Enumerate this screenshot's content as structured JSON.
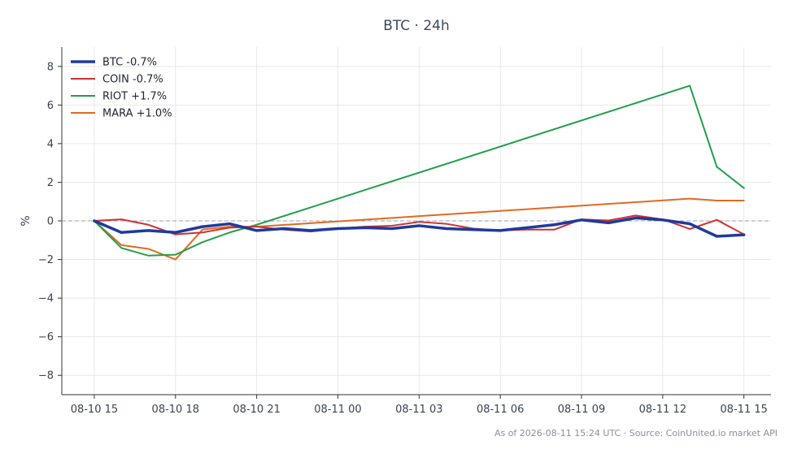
{
  "chart_data": {
    "type": "line",
    "title": "BTC · 24h",
    "xlabel": "",
    "ylabel": "%",
    "ylim": [
      -9,
      9
    ],
    "yticks": [
      -8,
      -6,
      -4,
      -2,
      0,
      2,
      4,
      6,
      8
    ],
    "ytick_labels": [
      "−8",
      "−6",
      "−4",
      "−2",
      "0",
      "2",
      "4",
      "6",
      "8"
    ],
    "xlim": [
      -1.2,
      25
    ],
    "xticks": [
      0,
      3,
      6,
      9,
      12,
      15,
      18,
      21,
      24
    ],
    "xtick_labels": [
      "08-10 15",
      "08-10 18",
      "08-10 21",
      "08-11 00",
      "08-11 03",
      "08-11 06",
      "08-11 09",
      "08-11 12",
      "08-11 15"
    ],
    "grid": true,
    "zero_line": true,
    "legend_position": "top-left",
    "x": [
      0,
      1,
      2,
      3,
      4,
      5,
      6,
      7,
      8,
      9,
      10,
      11,
      12,
      13,
      14,
      15,
      16,
      17,
      18,
      19,
      20,
      21,
      22,
      23,
      24
    ],
    "series": [
      {
        "name": "BTC -0.7%",
        "color": "#1f3a9e",
        "width": 3.5,
        "values": [
          0.0,
          -0.6,
          -0.5,
          -0.6,
          -0.3,
          -0.15,
          -0.5,
          -0.4,
          -0.5,
          -0.4,
          -0.35,
          -0.4,
          -0.25,
          -0.4,
          -0.45,
          -0.5,
          -0.35,
          -0.2,
          0.05,
          -0.1,
          0.15,
          0.05,
          -0.15,
          -0.8,
          -0.72
        ]
      },
      {
        "name": "COIN -0.7%",
        "color": "#d03030",
        "width": 2,
        "values": [
          0.0,
          0.08,
          -0.2,
          -0.7,
          -0.6,
          -0.35,
          -0.3,
          -0.45,
          -0.55,
          -0.4,
          -0.3,
          -0.25,
          -0.05,
          -0.15,
          -0.4,
          -0.5,
          -0.45,
          -0.45,
          0.08,
          0.02,
          0.28,
          0.08,
          -0.42,
          0.05,
          -0.7
        ]
      },
      {
        "name": "RIOT +1.7%",
        "color": "#21a04a",
        "width": 2,
        "values": [
          0.0,
          -1.4,
          -1.8,
          -1.75,
          -1.1,
          -0.6,
          -0.2,
          null,
          null,
          null,
          null,
          null,
          null,
          null,
          null,
          null,
          null,
          null,
          null,
          null,
          null,
          null,
          7.0,
          2.8,
          1.7
        ]
      },
      {
        "name": "MARA +1.0%",
        "color": "#e06a20",
        "width": 2,
        "values": [
          0.0,
          -1.25,
          -1.45,
          -2.0,
          -0.45,
          -0.3,
          -0.3,
          null,
          null,
          null,
          null,
          null,
          null,
          null,
          null,
          null,
          null,
          null,
          null,
          null,
          null,
          null,
          1.15,
          1.05,
          1.05
        ]
      }
    ]
  },
  "footer": "As of 2026-08-11 15:24 UTC · Source: CoinUnited.io market API"
}
